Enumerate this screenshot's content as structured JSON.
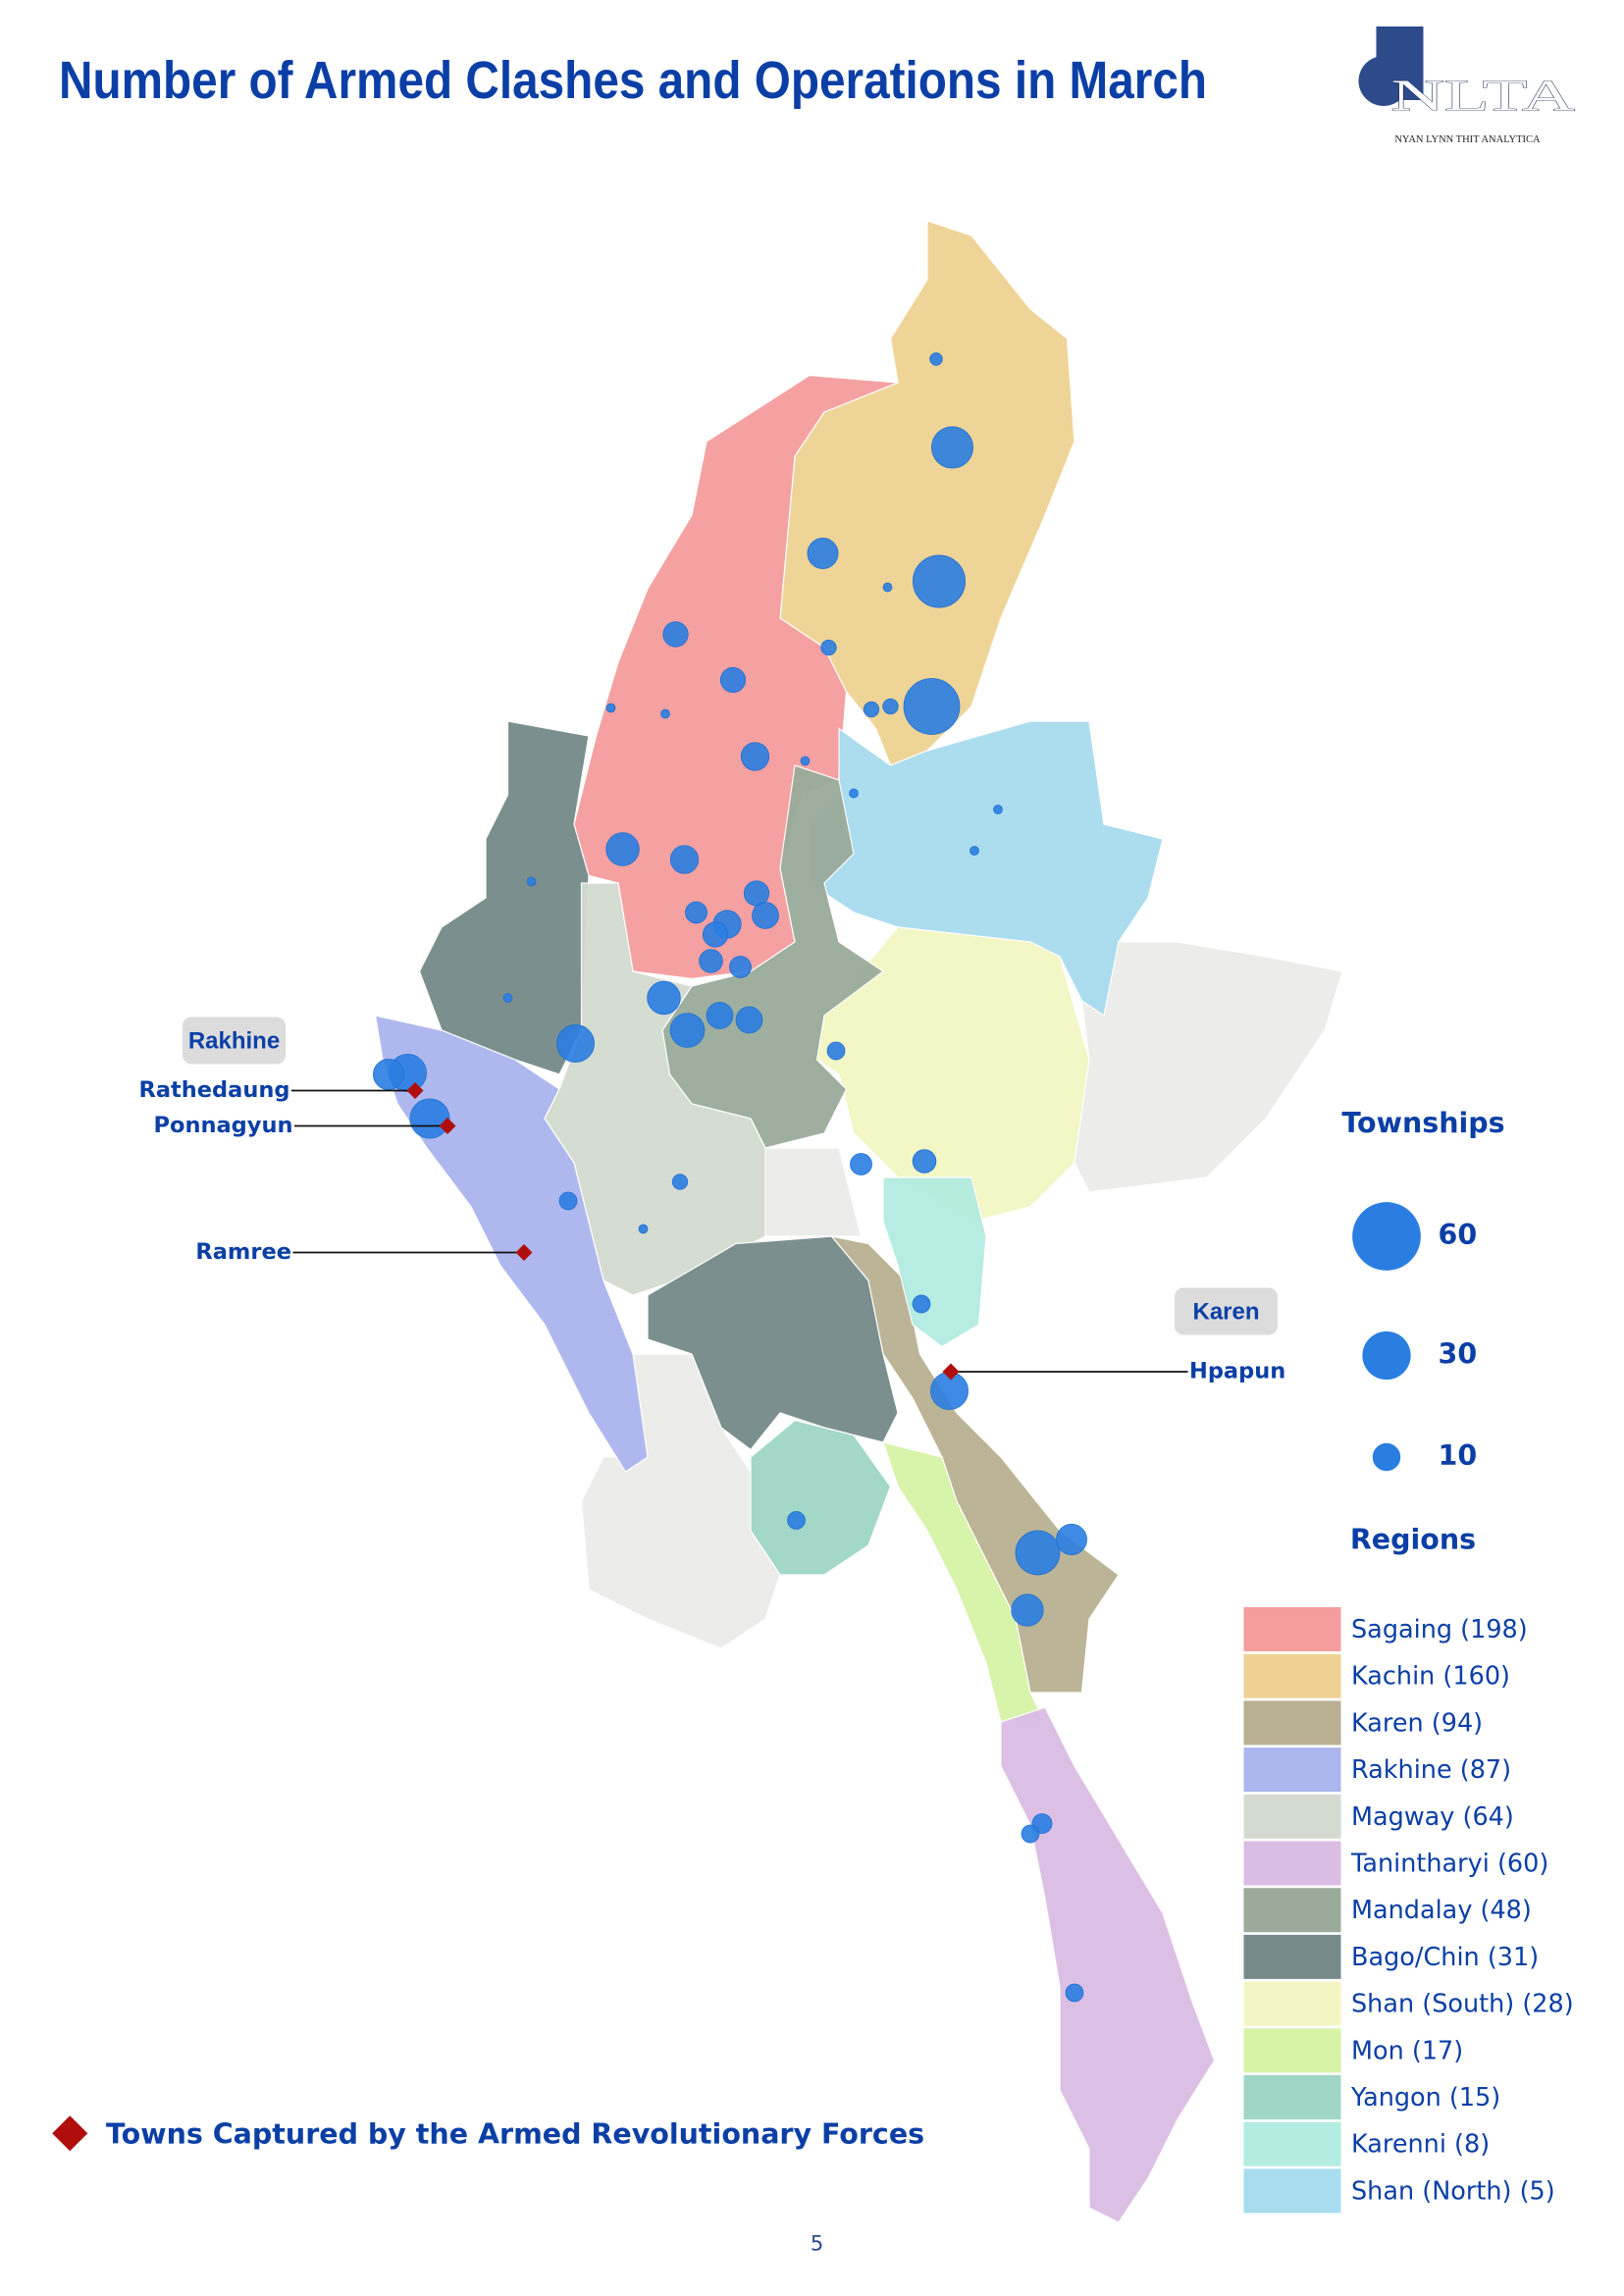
{
  "header": {
    "title": "Number of Armed Clashes and Operations in March",
    "logo": "NLTA",
    "logo_subtitle": "NYAN LYNN THIT ANALYTICA"
  },
  "chart_data": {
    "type": "bubble-map",
    "size_legend": {
      "title": "Townships",
      "values": [
        60,
        30,
        10
      ],
      "color": "#2a7de1"
    },
    "regions_legend": {
      "title": "Regions",
      "items": [
        {
          "name": "Sagaing (198)",
          "color": "#f59c9c"
        },
        {
          "name": "Kachin (160)",
          "color": "#efd293"
        },
        {
          "name": "Karen (94)",
          "color": "#b9b091"
        },
        {
          "name": "Rakhine (87)",
          "color": "#abb5ee"
        },
        {
          "name": "Magway (64)",
          "color": "#d3dbd0"
        },
        {
          "name": "Tanintharyi (60)",
          "color": "#dbbce4"
        },
        {
          "name": "Mandalay (48)",
          "color": "#9aab9a"
        },
        {
          "name": "Bago/Chin (31)",
          "color": "#768a8a"
        },
        {
          "name": "Shan (South) (28)",
          "color": "#f3f6c2"
        },
        {
          "name": "Mon (17)",
          "color": "#d6f3a6"
        },
        {
          "name": "Yangon (15)",
          "color": "#9fd6c6"
        },
        {
          "name": "Karenni (8)",
          "color": "#b3ece0"
        },
        {
          "name": "Shan (North) (5)",
          "color": "#a8dcef"
        }
      ]
    },
    "townships": {
      "values": [
        22,
        35,
        40,
        12,
        8,
        8,
        10,
        14,
        10,
        8,
        9,
        10,
        8,
        6,
        7,
        6,
        14,
        15,
        9,
        9,
        18,
        18,
        12,
        20,
        4,
        6,
        7,
        3,
        4,
        4,
        18,
        25,
        12,
        13,
        4,
        5,
        4,
        4,
        2,
        3,
        3,
        3,
        1,
        1,
        1,
        1,
        1,
        1,
        1,
        1,
        1,
        1
      ]
    },
    "region_tags": [
      "Rakhine",
      "Karen"
    ],
    "captured_towns": [
      "Rathedaung",
      "Ponnagyun",
      "Ramree",
      "Hpapun"
    ],
    "captured_legend": "Towns Captured by the Armed Revolutionary Forces",
    "captured_color": "#b00d0d"
  },
  "page_number": "5"
}
